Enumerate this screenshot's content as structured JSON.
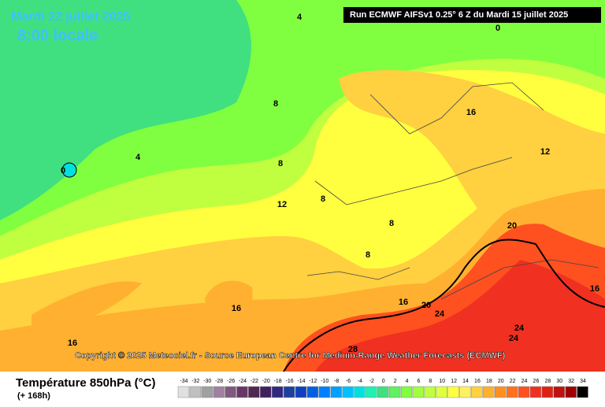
{
  "header": {
    "date": "Mardi 22 juillet 2025",
    "time": "8:00 locale",
    "run": "Run ECMWF AIFSv1 0.25° 6 Z du Mardi 15 juillet 2025"
  },
  "map": {
    "contour_labels": [
      4,
      0,
      8,
      16,
      12,
      0,
      4,
      8,
      12,
      8,
      8,
      20,
      8,
      16,
      16,
      20,
      24,
      16,
      24,
      24,
      16,
      28
    ]
  },
  "copyright": "Copyright © 2025 Meteociel.fr - Source European Centre for Medium-Range Weather Forecasts (ECMWF)",
  "legend": {
    "title": "Température 850hPa (°C)",
    "subtitle": "(+ 168h)",
    "scale": [
      -34,
      -32,
      -30,
      -28,
      -26,
      -24,
      -22,
      -20,
      -18,
      -16,
      -14,
      -12,
      -10,
      -8,
      -6,
      -4,
      -2,
      0,
      2,
      4,
      6,
      8,
      10,
      12,
      14,
      16,
      18,
      20,
      22,
      24,
      26,
      28,
      30,
      32,
      34
    ],
    "colors": [
      "#e0e0e0",
      "#c0c0c0",
      "#a0a0a0",
      "#a080a0",
      "#805880",
      "#683868",
      "#502850",
      "#402060",
      "#302880",
      "#2040a0",
      "#1040c0",
      "#0060e0",
      "#0080ff",
      "#00a0ff",
      "#00c0ff",
      "#00e0e0",
      "#20f0b0",
      "#40e080",
      "#60f060",
      "#80ff40",
      "#a0ff40",
      "#c0ff40",
      "#e0ff40",
      "#ffff40",
      "#fff060",
      "#ffd040",
      "#ffb030",
      "#ff9020",
      "#ff7020",
      "#ff5020",
      "#f03020",
      "#e02010",
      "#c01010",
      "#a00000",
      "#000000"
    ]
  }
}
